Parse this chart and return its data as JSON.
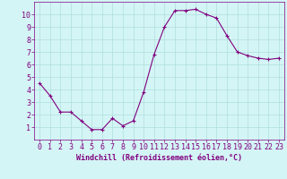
{
  "x": [
    0,
    1,
    2,
    3,
    4,
    5,
    6,
    7,
    8,
    9,
    10,
    11,
    12,
    13,
    14,
    15,
    16,
    17,
    18,
    19,
    20,
    21,
    22,
    23
  ],
  "y": [
    4.5,
    3.5,
    2.2,
    2.2,
    1.5,
    0.8,
    0.8,
    1.7,
    1.1,
    1.5,
    3.8,
    6.8,
    9.0,
    10.3,
    10.3,
    10.4,
    10.0,
    9.7,
    8.3,
    7.0,
    6.7,
    6.5,
    6.4,
    6.5
  ],
  "line_color": "#800080",
  "marker": "+",
  "marker_size": 3,
  "bg_color": "#d4f5f5",
  "grid_color": "#b0dede",
  "axis_color": "#800080",
  "xlabel": "Windchill (Refroidissement éolien,°C)",
  "xlabel_fontsize": 6,
  "tick_fontsize": 6,
  "xlim": [
    -0.5,
    23.5
  ],
  "ylim": [
    0,
    11
  ],
  "yticks": [
    1,
    2,
    3,
    4,
    5,
    6,
    7,
    8,
    9,
    10
  ],
  "xticks": [
    0,
    1,
    2,
    3,
    4,
    5,
    6,
    7,
    8,
    9,
    10,
    11,
    12,
    13,
    14,
    15,
    16,
    17,
    18,
    19,
    20,
    21,
    22,
    23
  ]
}
